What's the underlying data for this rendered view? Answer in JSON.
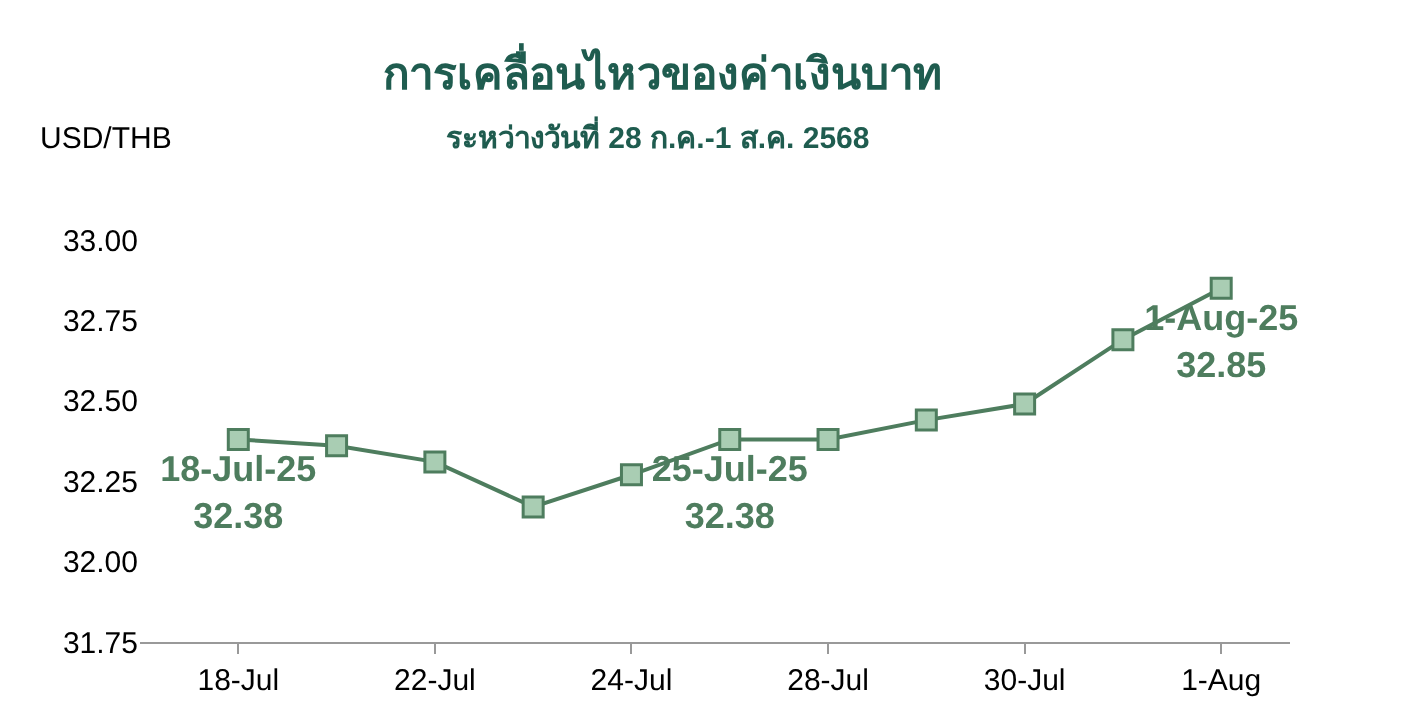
{
  "chart_data": {
    "type": "line",
    "title": "การเคลื่อนไหวของค่าเงินบาท",
    "subtitle": "ระหว่างวันที่ 28 ก.ค.-1 ส.ค. 2568",
    "ylabel": "USD/THB",
    "categories": [
      "18-Jul",
      null,
      "22-Jul",
      null,
      "24-Jul",
      null,
      "28-Jul",
      null,
      "30-Jul",
      null,
      "1-Aug"
    ],
    "series": [
      {
        "color": "#4e7d5e",
        "values": [
          32.38,
          32.36,
          32.31,
          32.17,
          32.27,
          32.38,
          32.38,
          32.44,
          32.49,
          32.69,
          32.85
        ],
        "value_labels": [
          "18-Jul-25\n32.38",
          null,
          null,
          null,
          null,
          "25-Jul-25\n32.38",
          null,
          null,
          null,
          null,
          "1-Aug-25\n32.85"
        ]
      }
    ],
    "ylim": [
      31.75,
      33.0
    ],
    "yticks": [
      {
        "value": 31.75,
        "label": "31.75"
      },
      {
        "value": 32.0,
        "label": "32.00"
      },
      {
        "value": 32.25,
        "label": "32.25"
      },
      {
        "value": 32.5,
        "label": "32.50"
      },
      {
        "value": 32.75,
        "label": "32.75"
      },
      {
        "value": 33.0,
        "label": "33.00"
      }
    ],
    "marker": "square",
    "line_style": "solid",
    "grid": false,
    "legend": false
  }
}
